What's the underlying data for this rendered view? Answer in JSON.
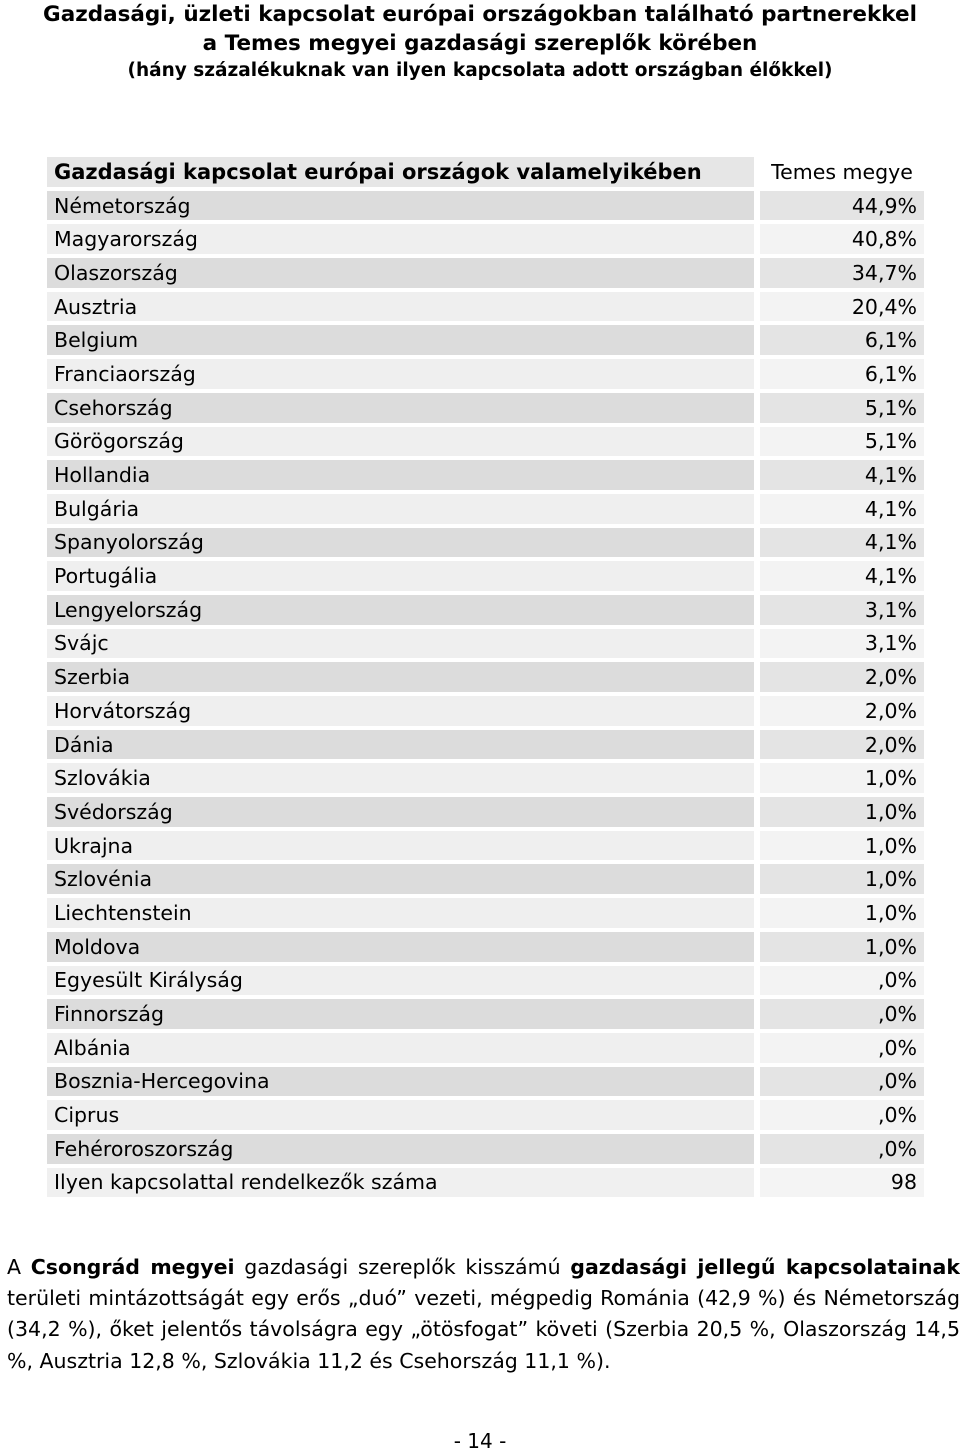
{
  "title": {
    "line1": "Gazdasági, üzleti kapcsolat európai országokban található partnerekkel",
    "line2": "a Temes megyei gazdasági szereplők körében",
    "subtitle": "(hány százalékuknak van ilyen kapcsolata adott országban élőkkel)"
  },
  "table": {
    "header_label": "Gazdasági kapcsolat európai országok valamelyikében",
    "header_column": "Temes megye",
    "rows": [
      {
        "country": "Németország",
        "value": "44,9%"
      },
      {
        "country": "Magyarország",
        "value": "40,8%"
      },
      {
        "country": "Olaszország",
        "value": "34,7%"
      },
      {
        "country": "Ausztria",
        "value": "20,4%"
      },
      {
        "country": "Belgium",
        "value": "6,1%"
      },
      {
        "country": "Franciaország",
        "value": "6,1%"
      },
      {
        "country": "Csehország",
        "value": "5,1%"
      },
      {
        "country": "Görögország",
        "value": "5,1%"
      },
      {
        "country": "Hollandia",
        "value": "4,1%"
      },
      {
        "country": "Bulgária",
        "value": "4,1%"
      },
      {
        "country": "Spanyolország",
        "value": "4,1%"
      },
      {
        "country": "Portugália",
        "value": "4,1%"
      },
      {
        "country": "Lengyelország",
        "value": "3,1%"
      },
      {
        "country": "Svájc",
        "value": "3,1%"
      },
      {
        "country": "Szerbia",
        "value": "2,0%"
      },
      {
        "country": "Horvátország",
        "value": "2,0%"
      },
      {
        "country": "Dánia",
        "value": "2,0%"
      },
      {
        "country": "Szlovákia",
        "value": "1,0%"
      },
      {
        "country": "Svédország",
        "value": "1,0%"
      },
      {
        "country": "Ukrajna",
        "value": "1,0%"
      },
      {
        "country": "Szlovénia",
        "value": "1,0%"
      },
      {
        "country": "Liechtenstein",
        "value": "1,0%"
      },
      {
        "country": "Moldova",
        "value": "1,0%"
      },
      {
        "country": "Egyesült Királyság",
        "value": ",0%"
      },
      {
        "country": "Finnország",
        "value": ",0%"
      },
      {
        "country": "Albánia",
        "value": ",0%"
      },
      {
        "country": "Bosznia-Hercegovina",
        "value": ",0%"
      },
      {
        "country": "Ciprus",
        "value": ",0%"
      },
      {
        "country": "Fehéroroszország",
        "value": ",0%"
      }
    ],
    "total_label": "Ilyen kapcsolattal rendelkezők száma",
    "total_value": "98"
  },
  "paragraph": {
    "p1": "A ",
    "b1": "Csongrád megyei",
    "p2": " gazdasági szereplők kisszámú ",
    "b2": "gazdasági jellegű kapcsolatainak",
    "p3": " területi mintázottságát egy erős „duó” vezeti, mégpedig Románia (42,9 %) és Németország (34,2 %), őket jelentős távolságra egy „ötösfogat” követi (Szerbia 20,5 %, Olaszország 14,5 %, Ausztria 12,8 %, Szlovákia 11,2 és Csehország 11,1 %)."
  },
  "page_number": "- 14 -"
}
